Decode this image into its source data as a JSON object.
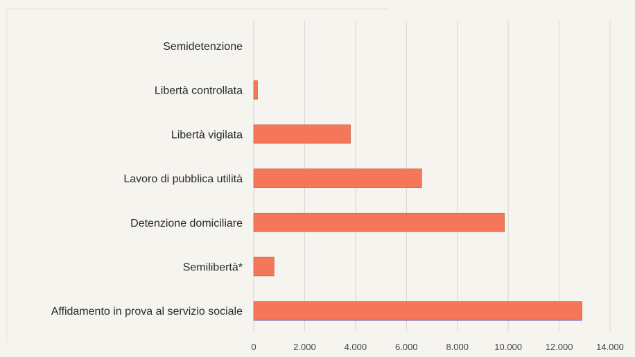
{
  "chart_data": {
    "type": "bar",
    "orientation": "horizontal",
    "categories": [
      "Semidetenzione",
      "Libertà controllata",
      "Libertà vigilata",
      "Lavoro di pubblica utilità",
      "Detenzione domiciliare",
      "Semilibertà*",
      "Affidamento in prova al servizio sociale"
    ],
    "values": [
      0,
      150,
      3800,
      6600,
      9850,
      800,
      12900
    ],
    "xlim": [
      0,
      14000
    ],
    "x_ticks": [
      0,
      2000,
      4000,
      6000,
      8000,
      10000,
      12000,
      14000
    ],
    "x_tick_labels": [
      "0",
      "2.000",
      "4.000",
      "6.000",
      "8.000",
      "10.000",
      "12.000",
      "14.000"
    ],
    "grid": true,
    "legend": "none",
    "colors": {
      "bar": "#f5775a",
      "bar_edge": "#c25a3c",
      "accent_line": "#9b7fc6",
      "grid": "#d6d4cf",
      "background": "#f6f4ee"
    }
  }
}
